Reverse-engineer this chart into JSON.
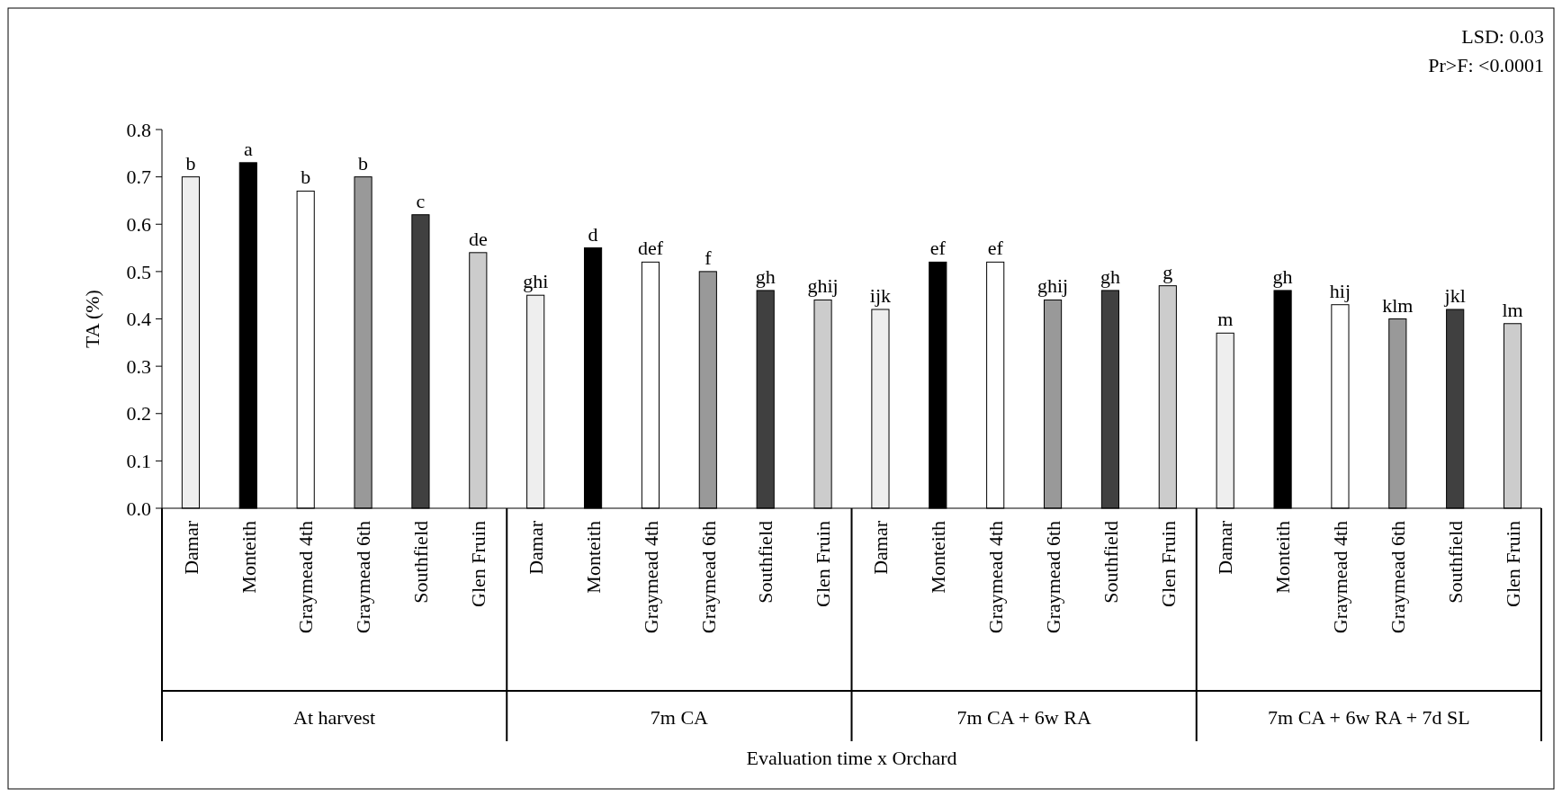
{
  "chart_data": {
    "type": "bar",
    "ylabel": "TA (%)",
    "categories": [
      "Damar",
      "Monteith",
      "Graymead 4th",
      "Graymead 6th",
      "Southfield",
      "Glen Fruin",
      "Damar",
      "Monteith",
      "Graymead 4th",
      "Graymead 6th",
      "Southfield",
      "Glen Fruin",
      "Damar",
      "Monteith",
      "Graymead 4th",
      "Graymead 6th",
      "Southfield",
      "Glen Fruin",
      "Damar",
      "Monteith",
      "Graymead 4th",
      "Graymead 6th",
      "Southfield",
      "Glen Fruin"
    ],
    "values": [
      0.7,
      0.73,
      0.67,
      0.7,
      0.62,
      0.54,
      0.45,
      0.55,
      0.52,
      0.5,
      0.46,
      0.44,
      0.42,
      0.52,
      0.52,
      0.44,
      0.46,
      0.47,
      0.37,
      0.46,
      0.43,
      0.4,
      0.42,
      0.39
    ],
    "value_labels": [
      "b",
      "a",
      "b",
      "b",
      "c",
      "de",
      "ghi",
      "d",
      "def",
      "f",
      "gh",
      "ghij",
      "ijk",
      "ef",
      "ef",
      "ghij",
      "gh",
      "g",
      "m",
      "gh",
      "hij",
      "klm",
      "jkl",
      "lm"
    ],
    "colors": [
      "#eeeeee",
      "#000000",
      "#ffffff",
      "#999999",
      "#404040",
      "#cccccc",
      "#eeeeee",
      "#000000",
      "#ffffff",
      "#999999",
      "#404040",
      "#cccccc",
      "#eeeeee",
      "#000000",
      "#ffffff",
      "#999999",
      "#404040",
      "#cccccc",
      "#eeeeee",
      "#000000",
      "#ffffff",
      "#999999",
      "#404040",
      "#cccccc"
    ],
    "ylim": [
      0,
      0.8
    ],
    "yticks": [
      {
        "value": 0,
        "label": "0.0"
      },
      0.1,
      0.2,
      0.3,
      0.4,
      0.5,
      0.6,
      0.7,
      0.8
    ],
    "annotations": [
      "At harvest",
      "7m CA",
      "7m CA + 6w RA",
      "7m CA + 6w RA + 7d SL",
      "Evaluation time x Orchard",
      "LSD: 0.03",
      "Pr>F: <0.0001"
    ]
  }
}
